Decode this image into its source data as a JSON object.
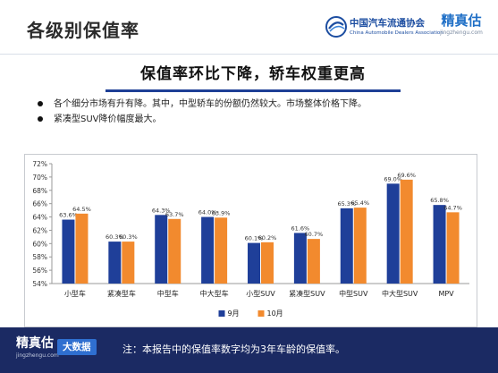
{
  "header": {
    "title": "各级别保值率",
    "org_logo_cn": "中国汽车流通协会",
    "org_logo_en": "China Automobile Dealers Association",
    "brand_cn": "精真估",
    "brand_en": "jingzhengu.com"
  },
  "subtitle": "保值率环比下降，轿车权重更高",
  "bullets": [
    "各个细分市场有升有降。其中，中型轿车的份额仍然较大。市场整体价格下降。",
    "紧凑型SUV降价幅度最大。"
  ],
  "chart_data": {
    "type": "bar",
    "categories": [
      "小型车",
      "紧凑型车",
      "中型车",
      "中大型车",
      "小型SUV",
      "紧凑型SUV",
      "中型SUV",
      "中大型SUV",
      "MPV"
    ],
    "series": [
      {
        "name": "9月",
        "color": "#1f3f99",
        "values": [
          63.6,
          60.3,
          64.3,
          64.0,
          60.1,
          61.6,
          65.3,
          69.0,
          65.8
        ],
        "labels": [
          "63.6%",
          "60.3%",
          "64.3%",
          "64.0%",
          "60.1%",
          "61.6%",
          "65.3%",
          "69.0%",
          "65.8%"
        ]
      },
      {
        "name": "10月",
        "color": "#f28a2e",
        "values": [
          64.5,
          60.3,
          63.7,
          63.9,
          60.2,
          60.7,
          65.4,
          69.6,
          64.7
        ],
        "labels": [
          "64.5%",
          "60.3%",
          "63.7%",
          "63.9%",
          "60.2%",
          "60.7%",
          "65.4%",
          "69.6%",
          "64.7%"
        ]
      }
    ],
    "ylim": [
      54,
      72
    ],
    "yticks": [
      54,
      56,
      58,
      60,
      62,
      64,
      66,
      68,
      70,
      72
    ],
    "ytick_labels": [
      "54%",
      "56%",
      "58%",
      "60%",
      "62%",
      "64%",
      "66%",
      "68%",
      "70%",
      "72%"
    ],
    "legend_position": "bottom",
    "grid": false
  },
  "footer": {
    "brand_cn": "精真估",
    "brand_en": "jingzhengu.com",
    "badge": "大数据",
    "note": "注：本报告中的保值率数字均为3年车龄的保值率。"
  }
}
